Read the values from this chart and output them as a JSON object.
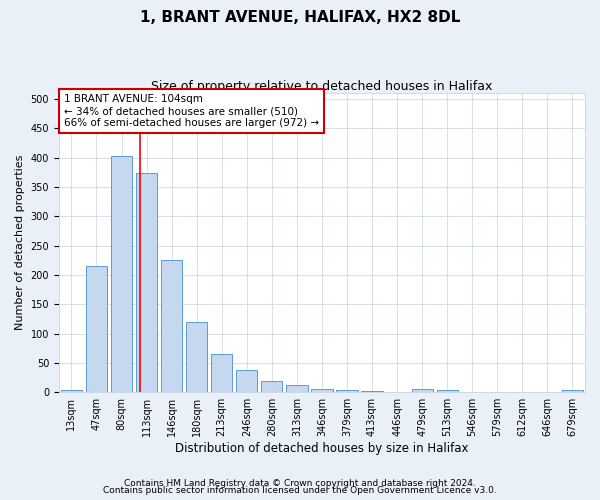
{
  "title1": "1, BRANT AVENUE, HALIFAX, HX2 8DL",
  "title2": "Size of property relative to detached houses in Halifax",
  "xlabel": "Distribution of detached houses by size in Halifax",
  "ylabel": "Number of detached properties",
  "categories": [
    "13sqm",
    "47sqm",
    "80sqm",
    "113sqm",
    "146sqm",
    "180sqm",
    "213sqm",
    "246sqm",
    "280sqm",
    "313sqm",
    "346sqm",
    "379sqm",
    "413sqm",
    "446sqm",
    "479sqm",
    "513sqm",
    "546sqm",
    "579sqm",
    "612sqm",
    "646sqm",
    "679sqm"
  ],
  "values": [
    4,
    215,
    403,
    373,
    226,
    120,
    65,
    38,
    19,
    13,
    6,
    4,
    2,
    1,
    5,
    4,
    1,
    0,
    0,
    0,
    3
  ],
  "bar_color": "#c5d8f0",
  "bar_edge_color": "#5b9bd5",
  "red_line_x": 2.73,
  "annotation_text": "1 BRANT AVENUE: 104sqm\n← 34% of detached houses are smaller (510)\n66% of semi-detached houses are larger (972) →",
  "annotation_box_color": "#ffffff",
  "annotation_box_edge_color": "#cc0000",
  "footer1": "Contains HM Land Registry data © Crown copyright and database right 2024.",
  "footer2": "Contains public sector information licensed under the Open Government Licence v3.0.",
  "bg_color": "#eaf0f8",
  "plot_bg_color": "#ffffff",
  "ylim": [
    0,
    510
  ],
  "title1_fontsize": 11,
  "title2_fontsize": 9,
  "xlabel_fontsize": 8.5,
  "ylabel_fontsize": 8,
  "tick_fontsize": 7,
  "annotation_fontsize": 7.5,
  "footer_fontsize": 6.5
}
